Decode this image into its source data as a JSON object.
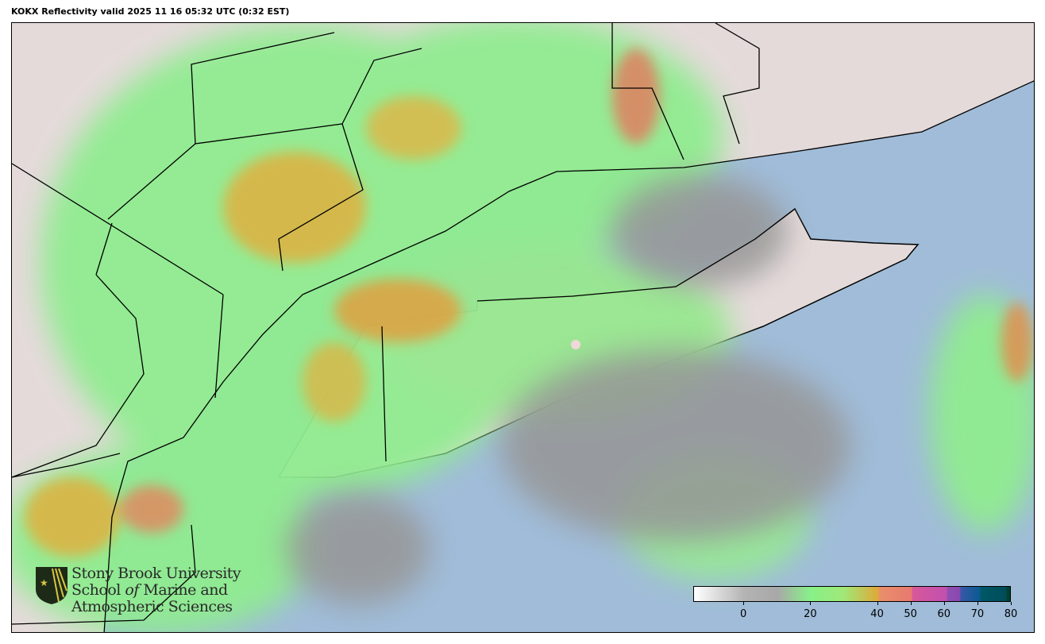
{
  "title": "KOKX Reflectivity valid 2025 11 16 05:32 UTC (0:32 EST)",
  "logo": {
    "line1": "Stony Brook University",
    "line2a": "School ",
    "line2b": "of",
    "line2c": " Marine and",
    "line3": "Atmospheric Sciences"
  },
  "colors": {
    "ocean": "#a0bcd8",
    "land": "#e4dada",
    "radar_site": "#f0d8d8"
  },
  "colorbar": {
    "range": [
      -15,
      80
    ],
    "ticks": [
      0,
      20,
      40,
      50,
      60,
      70,
      80
    ],
    "stops": [
      {
        "v": -15,
        "c": "#ffffff"
      },
      {
        "v": 0,
        "c": "#b4b4b4"
      },
      {
        "v": 10,
        "c": "#a8a8a8"
      },
      {
        "v": 20,
        "c": "#88f088"
      },
      {
        "v": 30,
        "c": "#a0e878"
      },
      {
        "v": 40.5,
        "c": "#e0a838"
      },
      {
        "v": 40.6,
        "c": "#e8906a"
      },
      {
        "v": 50.5,
        "c": "#e87870"
      },
      {
        "v": 50.6,
        "c": "#d85898"
      },
      {
        "v": 61,
        "c": "#c050b0"
      },
      {
        "v": 61.1,
        "c": "#9050b0"
      },
      {
        "v": 65,
        "c": "#8848b0"
      },
      {
        "v": 65.1,
        "c": "#3858a8"
      },
      {
        "v": 71,
        "c": "#0a5a90"
      },
      {
        "v": 71.1,
        "c": "#005868"
      },
      {
        "v": 78.9,
        "c": "#004c58"
      },
      {
        "v": 79,
        "c": "#004030"
      },
      {
        "v": 80,
        "c": "#004030"
      }
    ]
  }
}
